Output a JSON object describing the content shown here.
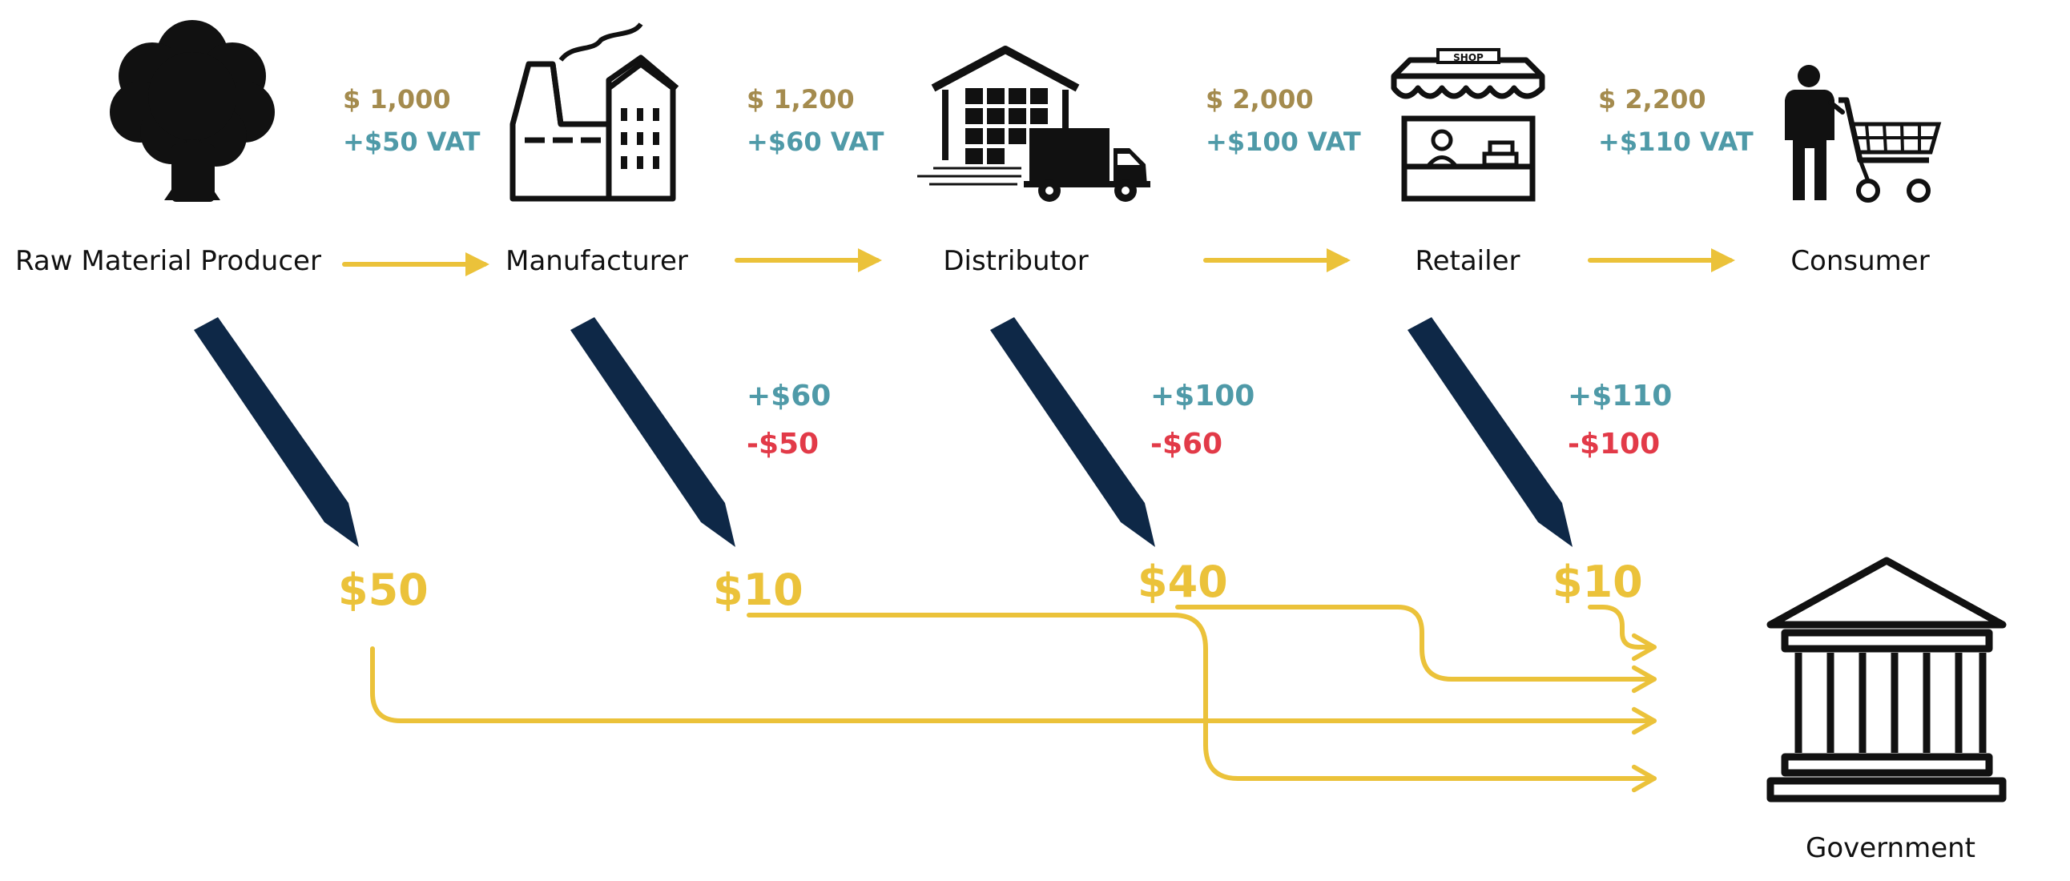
{
  "colors": {
    "gold": "#A48B4E",
    "teal": "#4F9AA8",
    "red": "#E23A48",
    "yellow": "#EBC23A",
    "navy": "#0E2847",
    "black": "#111111"
  },
  "stages": [
    {
      "label": "Raw Material Producer",
      "icon": "tree-icon"
    },
    {
      "label": "Manufacturer",
      "icon": "factory-icon"
    },
    {
      "label": "Distributor",
      "icon": "warehouse-truck-icon"
    },
    {
      "label": "Retailer",
      "icon": "shop-icon",
      "icon_text": "SHOP"
    },
    {
      "label": "Consumer",
      "icon": "shopper-cart-icon"
    }
  ],
  "transactions": [
    {
      "price": "$ 1,000",
      "vat": "+$50 VAT"
    },
    {
      "price": "$ 1,200",
      "vat": "+$60 VAT"
    },
    {
      "price": "$ 2,000",
      "vat": "+$100 VAT"
    },
    {
      "price": "$ 2,200",
      "vat": "+$110 VAT"
    }
  ],
  "credits": [
    {
      "plus": "+$60",
      "minus": "-$50"
    },
    {
      "plus": "+$100",
      "minus": "-$60"
    },
    {
      "plus": "+$110",
      "minus": "-$100"
    }
  ],
  "tax_paid": [
    "$50",
    "$10",
    "$40",
    "$10"
  ],
  "government": {
    "label": "Government",
    "icon": "government-building-icon"
  }
}
